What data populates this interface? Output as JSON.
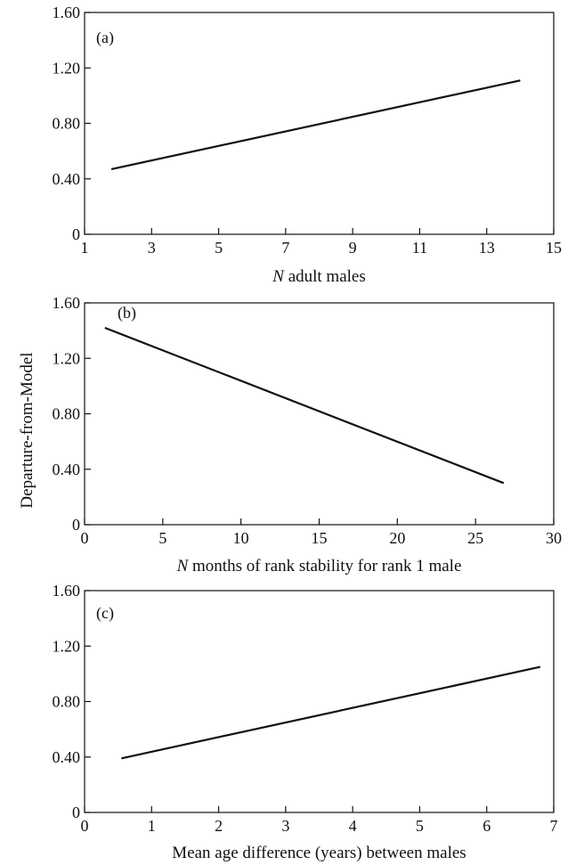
{
  "ylabel": "Departure-from-Model",
  "chart_data": [
    {
      "type": "line",
      "panel_label": "(a)",
      "xlabel_italic": "N",
      "xlabel_rest": " adult males",
      "xlim": [
        1,
        15
      ],
      "ylim": [
        0,
        1.6
      ],
      "xticks": [
        "1",
        "3",
        "5",
        "7",
        "9",
        "11",
        "13",
        "15"
      ],
      "yticks": [
        "0",
        "0.40",
        "0.80",
        "1.20",
        "1.60"
      ],
      "series": [
        {
          "x": [
            1.8,
            14.0
          ],
          "y": [
            0.47,
            1.11
          ]
        }
      ]
    },
    {
      "type": "line",
      "panel_label": "(b)",
      "xlabel_italic": "N",
      "xlabel_rest": " months of rank stability for rank 1 male",
      "xlim": [
        0,
        30
      ],
      "ylim": [
        0,
        1.6
      ],
      "xticks": [
        "0",
        "5",
        "10",
        "15",
        "20",
        "25",
        "30"
      ],
      "yticks": [
        "0",
        "0.40",
        "0.80",
        "1.20",
        "1.60"
      ],
      "series": [
        {
          "x": [
            1.3,
            26.8
          ],
          "y": [
            1.42,
            0.3
          ]
        }
      ]
    },
    {
      "type": "line",
      "panel_label": "(c)",
      "xlabel_italic": "",
      "xlabel_rest": "Mean age difference (years) between males",
      "xlim": [
        0,
        7
      ],
      "ylim": [
        0,
        1.6
      ],
      "xticks": [
        "0",
        "1",
        "2",
        "3",
        "4",
        "5",
        "6",
        "7"
      ],
      "yticks": [
        "0",
        "0.40",
        "0.80",
        "1.20",
        "1.60"
      ],
      "series": [
        {
          "x": [
            0.55,
            6.8
          ],
          "y": [
            0.39,
            1.05
          ]
        }
      ]
    }
  ]
}
